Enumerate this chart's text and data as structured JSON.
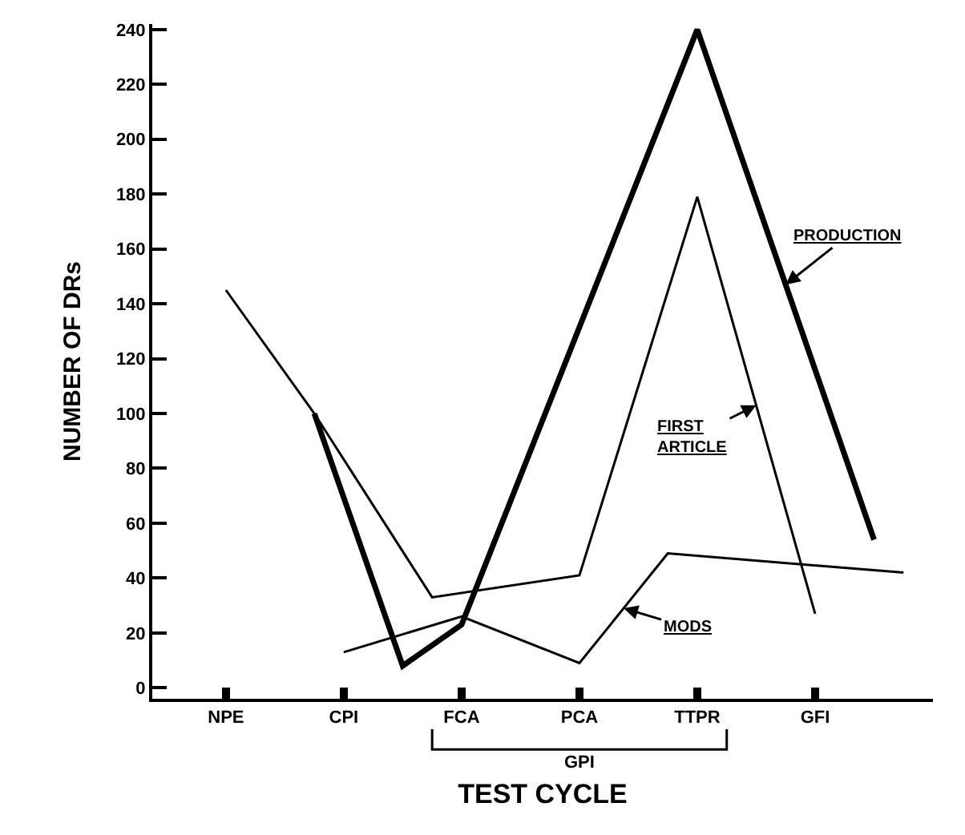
{
  "chart_data": {
    "type": "line",
    "xlabel": "TEST CYCLE",
    "ylabel": "NUMBER OF DRs",
    "categories": [
      "NPE",
      null,
      null,
      null,
      "CPI",
      null,
      null,
      null,
      "FCA",
      null,
      null,
      null,
      "PCA",
      null,
      null,
      null,
      "TTPR",
      null,
      null,
      null,
      "GFI",
      null,
      null,
      null
    ],
    "ylim": [
      -4,
      242
    ],
    "yticks": [
      0,
      20,
      40,
      60,
      80,
      100,
      120,
      140,
      160,
      180,
      200,
      220,
      240
    ],
    "marker": "none",
    "line_style": "solid",
    "series": [
      {
        "name": "PRODUCTION",
        "color": "#000000",
        "values": [
          null,
          null,
          null,
          100,
          null,
          null,
          8,
          null,
          23,
          null,
          null,
          null,
          null,
          null,
          null,
          null,
          240,
          null,
          null,
          null,
          null,
          null,
          54,
          null
        ]
      },
      {
        "name": "FIRST ARTICLE",
        "color": "#000000",
        "values": [
          145,
          null,
          null,
          100,
          null,
          null,
          null,
          33,
          null,
          null,
          null,
          null,
          41,
          null,
          null,
          null,
          179,
          null,
          null,
          null,
          27,
          null,
          null,
          null
        ]
      },
      {
        "name": "MODS",
        "color": "#000000",
        "values": [
          null,
          null,
          null,
          null,
          13,
          null,
          null,
          null,
          26,
          null,
          null,
          null,
          9,
          null,
          null,
          49,
          null,
          null,
          null,
          null,
          null,
          null,
          null,
          42
        ]
      }
    ],
    "annotations": [
      "GPI"
    ]
  }
}
